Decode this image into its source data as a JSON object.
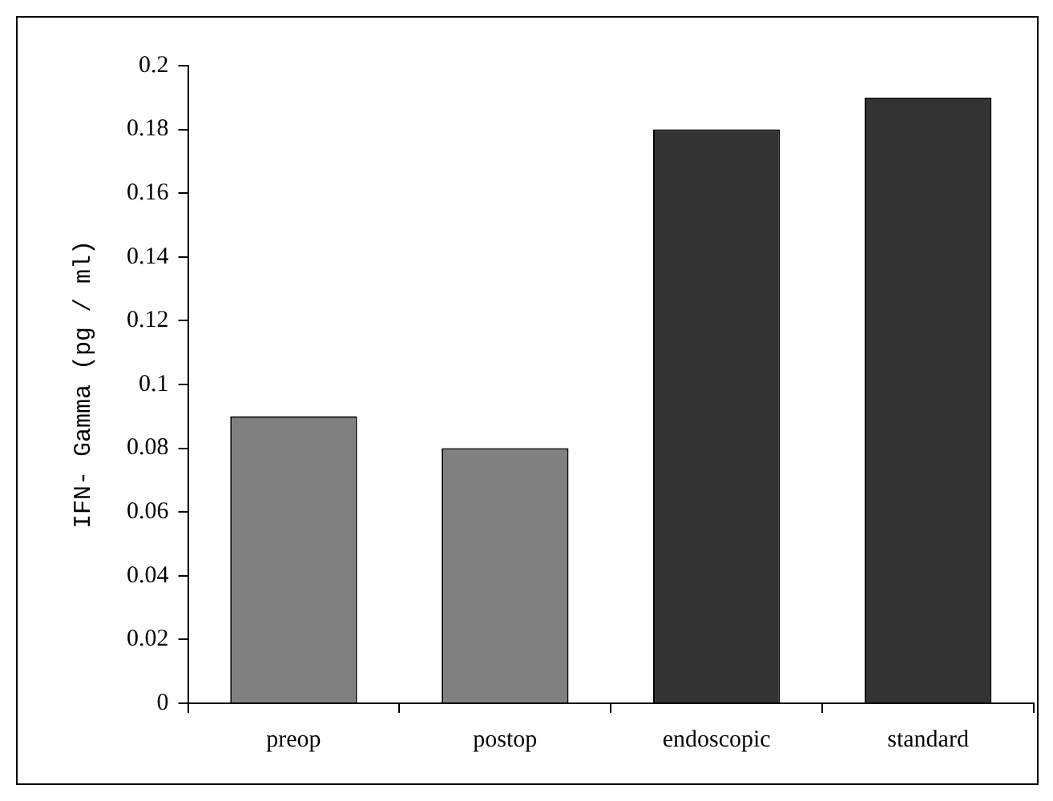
{
  "chart_data": {
    "type": "bar",
    "ylabel": "IFN- Gamma (pg / ml)",
    "categories": [
      "preop",
      "postop",
      "endoscopic",
      "standard"
    ],
    "values": [
      0.09,
      0.08,
      0.18,
      0.19
    ],
    "colors": [
      "#808080",
      "#808080",
      "#333333",
      "#333333"
    ],
    "ylim": [
      0,
      0.2
    ],
    "yticks": [
      0,
      0.02,
      0.04,
      0.06,
      0.08,
      0.1,
      0.12,
      0.14,
      0.16,
      0.18,
      0.2
    ],
    "grid": false,
    "legend": false
  }
}
